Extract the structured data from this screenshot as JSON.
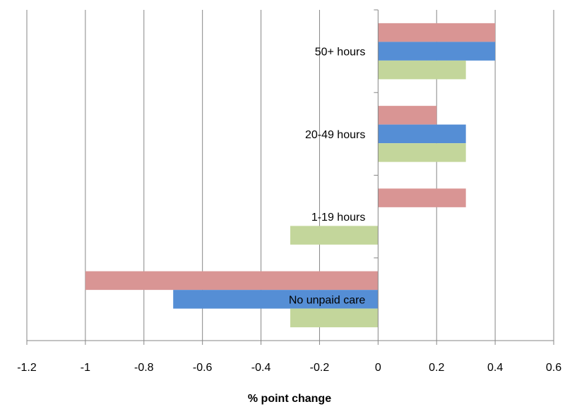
{
  "chart_data": {
    "type": "bar",
    "orientation": "horizontal",
    "title": "",
    "xlabel": "% point change",
    "ylabel": "",
    "categories": [
      "No unpaid care",
      "1-19 hours",
      "20-49 hours",
      "50+ hours"
    ],
    "series": [
      {
        "color": "#d99594",
        "values": [
          -1.0,
          0.3,
          0.2,
          0.4
        ]
      },
      {
        "color": "#558ed5",
        "values": [
          -0.7,
          0.0,
          0.3,
          0.4
        ]
      },
      {
        "color": "#c3d69b",
        "values": [
          -0.3,
          -0.3,
          0.3,
          0.3
        ]
      }
    ],
    "xlim": [
      -1.2,
      0.6
    ],
    "xticks": [
      -1.2,
      -1,
      -0.8,
      -0.6,
      -0.4,
      -0.2,
      0,
      0.2,
      0.4,
      0.6
    ],
    "xtick_labels": [
      "-1.2",
      "-1",
      "-0.8",
      "-0.6",
      "-0.4",
      "-0.2",
      "0",
      "0.2",
      "0.4",
      "0.6"
    ],
    "grid": "vertical",
    "legend": "none"
  }
}
